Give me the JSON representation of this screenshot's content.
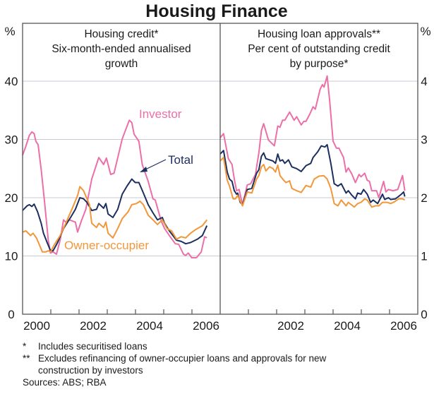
{
  "chart_data": {
    "title": "Housing Finance",
    "type": "line",
    "colors": {
      "investor": "#ec6fa8",
      "total": "#1c2f5e",
      "owner_occupier": "#f2973a",
      "grid": "#c9cad6",
      "axis": "#555555"
    },
    "grid": true,
    "panels": [
      {
        "heading": [
          "Housing credit*",
          "Six-month-ended annualised",
          "growth"
        ],
        "unit": "%",
        "ylim": [
          0,
          40
        ],
        "yticks": [
          "0",
          "10",
          "20",
          "30",
          "40"
        ],
        "xlim": [
          2000,
          2007
        ],
        "xtick_labels": [
          "2000",
          "2002",
          "2004",
          "2006"
        ],
        "annotations": {
          "investor": "Investor",
          "total": "Total",
          "owner_occupier": "Owner-occupier"
        },
        "series": [
          {
            "name": "Investor",
            "key": "investor",
            "x": [
              2000.0,
              2000.12,
              2000.24,
              2000.33,
              2000.41,
              2000.47,
              2000.55,
              2000.66,
              2000.78,
              2000.91,
              2000.99,
              2001.08,
              2001.2,
              2001.33,
              2001.45,
              2001.53,
              2001.66,
              2001.87,
              2001.95,
              2002.08,
              2002.24,
              2002.45,
              2002.7,
              2002.87,
              2002.97,
              2003.12,
              2003.24,
              2003.53,
              2003.78,
              2003.87,
              2003.95,
              2004.12,
              2004.24,
              2004.45,
              2004.62,
              2004.7,
              2004.91,
              2005.03,
              2005.2,
              2005.41,
              2005.53,
              2005.7,
              2005.78,
              2005.87,
              2005.99,
              2006.16,
              2006.33,
              2006.45,
              2006.53
            ],
            "y": [
              27.3,
              28.9,
              30.7,
              31.3,
              31.0,
              29.7,
              29.1,
              24.8,
              19.2,
              12.7,
              10.5,
              10.7,
              10.3,
              12.7,
              16.2,
              15.8,
              16.2,
              15.8,
              14.1,
              16.0,
              18.0,
              23.2,
              26.9,
              25.7,
              26.8,
              24.0,
              24.2,
              30.1,
              33.3,
              32.9,
              30.9,
              29.7,
              25.7,
              22.8,
              19.8,
              19.6,
              16.0,
              14.7,
              13.5,
              12.1,
              12.0,
              10.3,
              10.1,
              10.5,
              9.7,
              9.7,
              10.7,
              13.3,
              13.1
            ]
          },
          {
            "name": "Total",
            "key": "total",
            "x": [
              2000.0,
              2000.16,
              2000.24,
              2000.33,
              2000.41,
              2000.53,
              2000.66,
              2000.74,
              2000.87,
              2000.99,
              2001.08,
              2001.24,
              2001.45,
              2001.7,
              2001.87,
              2002.03,
              2002.16,
              2002.28,
              2002.45,
              2002.62,
              2002.7,
              2002.87,
              2002.95,
              2003.03,
              2003.2,
              2003.37,
              2003.53,
              2003.7,
              2003.87,
              2003.99,
              2004.12,
              2004.28,
              2004.45,
              2004.62,
              2004.78,
              2004.95,
              2005.03,
              2005.2,
              2005.45,
              2005.62,
              2005.78,
              2005.95,
              2006.2,
              2006.37,
              2006.53
            ],
            "y": [
              17.8,
              18.6,
              18.8,
              18.5,
              18.9,
              17.6,
              15.6,
              13.9,
              12.3,
              10.9,
              10.9,
              12.3,
              14.7,
              16.6,
              18.0,
              20.0,
              19.8,
              19.2,
              17.8,
              18.0,
              19.0,
              18.2,
              19.0,
              17.2,
              16.6,
              18.0,
              20.6,
              22.0,
              23.2,
              22.6,
              22.6,
              20.8,
              18.8,
              17.4,
              16.2,
              16.6,
              15.6,
              14.3,
              12.7,
              12.5,
              12.1,
              12.3,
              12.9,
              13.5,
              15.2
            ]
          },
          {
            "name": "Owner-occupier",
            "key": "owner_occupier",
            "x": [
              2000.0,
              2000.12,
              2000.28,
              2000.37,
              2000.49,
              2000.58,
              2000.7,
              2000.83,
              2000.91,
              2000.99,
              2001.12,
              2001.33,
              2001.53,
              2001.78,
              2001.95,
              2002.03,
              2002.16,
              2002.37,
              2002.45,
              2002.62,
              2002.7,
              2002.87,
              2002.95,
              2003.03,
              2003.2,
              2003.37,
              2003.53,
              2003.74,
              2003.87,
              2004.03,
              2004.16,
              2004.28,
              2004.45,
              2004.62,
              2004.78,
              2004.95,
              2005.12,
              2005.28,
              2005.45,
              2005.62,
              2005.78,
              2005.95,
              2006.12,
              2006.37,
              2006.53
            ],
            "y": [
              14.1,
              14.3,
              13.5,
              13.9,
              13.1,
              12.1,
              10.7,
              10.7,
              10.9,
              10.7,
              11.9,
              13.5,
              15.6,
              18.4,
              20.4,
              21.9,
              21.2,
              18.8,
              15.6,
              14.9,
              15.6,
              14.9,
              15.8,
              13.9,
              13.1,
              14.7,
              16.4,
              17.6,
              18.8,
              19.0,
              19.4,
              18.8,
              17.0,
              16.2,
              15.4,
              16.2,
              14.7,
              14.3,
              12.9,
              13.3,
              13.1,
              13.9,
              14.5,
              15.2,
              16.2
            ]
          }
        ]
      },
      {
        "heading": [
          "Housing loan approvals**",
          "Per cent of outstanding credit",
          "by purpose*"
        ],
        "unit": "%",
        "ylim": [
          0,
          5
        ],
        "yticks": [
          "0",
          "1",
          "2",
          "3",
          "4"
        ],
        "xlim": [
          2000,
          2007
        ],
        "xtick_labels": [
          "2002",
          "2004",
          "2006"
        ],
        "series": [
          {
            "name": "Investor",
            "key": "investor",
            "x": [
              2000.0,
              2000.12,
              2000.29,
              2000.42,
              2000.5,
              2000.58,
              2000.67,
              2000.79,
              2000.96,
              2001.08,
              2001.25,
              2001.37,
              2001.46,
              2001.54,
              2001.71,
              2001.92,
              2002.04,
              2002.12,
              2002.21,
              2002.29,
              2002.46,
              2002.62,
              2002.71,
              2002.87,
              2002.96,
              2003.04,
              2003.17,
              2003.29,
              2003.37,
              2003.54,
              2003.62,
              2003.68,
              2003.79,
              2003.88,
              2004.0,
              2004.12,
              2004.21,
              2004.37,
              2004.46,
              2004.54,
              2004.67,
              2004.79,
              2004.92,
              2004.99,
              2005.12,
              2005.21,
              2005.29,
              2005.37,
              2005.54,
              2005.62,
              2005.79,
              2005.87,
              2005.96,
              2006.12,
              2006.29,
              2006.46,
              2006.54
            ],
            "y": [
              3.03,
              3.1,
              2.67,
              2.57,
              2.32,
              2.12,
              2.14,
              1.88,
              2.22,
              2.24,
              2.4,
              2.77,
              3.15,
              3.27,
              2.99,
              2.89,
              3.23,
              3.21,
              3.33,
              3.33,
              3.47,
              3.33,
              3.39,
              3.25,
              3.31,
              3.31,
              3.43,
              3.56,
              3.52,
              3.86,
              3.94,
              3.9,
              4.09,
              3.66,
              2.97,
              2.85,
              2.85,
              2.69,
              2.44,
              2.51,
              2.4,
              2.26,
              2.4,
              2.36,
              2.42,
              2.3,
              2.28,
              2.12,
              2.12,
              2.0,
              2.28,
              2.1,
              2.14,
              2.12,
              2.14,
              2.38,
              2.12
            ]
          },
          {
            "name": "Total",
            "key": "total",
            "x": [
              2000.0,
              2000.12,
              2000.25,
              2000.33,
              2000.42,
              2000.5,
              2000.58,
              2000.62,
              2000.71,
              2000.79,
              2000.96,
              2001.12,
              2001.29,
              2001.37,
              2001.46,
              2001.54,
              2001.62,
              2001.87,
              2001.96,
              2002.04,
              2002.12,
              2002.21,
              2002.29,
              2002.42,
              2002.54,
              2002.71,
              2002.87,
              2003.04,
              2003.21,
              2003.29,
              2003.46,
              2003.58,
              2003.71,
              2003.79,
              2003.92,
              2004.04,
              2004.17,
              2004.29,
              2004.46,
              2004.54,
              2004.67,
              2004.79,
              2004.87,
              2004.99,
              2005.08,
              2005.21,
              2005.33,
              2005.42,
              2005.58,
              2005.75,
              2005.83,
              2005.96,
              2006.04,
              2006.21,
              2006.42,
              2006.5,
              2006.54
            ],
            "y": [
              2.75,
              2.81,
              2.44,
              2.32,
              2.28,
              2.12,
              2.06,
              2.08,
              1.92,
              1.88,
              2.14,
              2.16,
              2.42,
              2.48,
              2.71,
              2.77,
              2.67,
              2.63,
              2.59,
              2.75,
              2.63,
              2.65,
              2.59,
              2.65,
              2.53,
              2.5,
              2.45,
              2.55,
              2.59,
              2.69,
              2.79,
              2.89,
              2.87,
              2.91,
              2.59,
              2.24,
              2.2,
              2.24,
              2.08,
              2.12,
              2.04,
              1.98,
              2.08,
              2.06,
              2.14,
              2.06,
              1.92,
              1.96,
              1.9,
              2.06,
              1.97,
              2.0,
              1.97,
              1.98,
              2.06,
              2.1,
              2.02
            ]
          },
          {
            "name": "Owner-occupier",
            "key": "owner_occupier",
            "x": [
              2000.0,
              2000.12,
              2000.25,
              2000.33,
              2000.46,
              2000.54,
              2000.62,
              2000.79,
              2000.96,
              2001.12,
              2001.29,
              2001.37,
              2001.46,
              2001.54,
              2001.62,
              2001.75,
              2001.87,
              2001.96,
              2002.04,
              2002.12,
              2002.25,
              2002.33,
              2002.46,
              2002.54,
              2002.71,
              2002.87,
              2003.04,
              2003.21,
              2003.33,
              2003.5,
              2003.67,
              2003.79,
              2003.92,
              2004.04,
              2004.17,
              2004.29,
              2004.46,
              2004.54,
              2004.75,
              2004.87,
              2004.99,
              2005.12,
              2005.21,
              2005.37,
              2005.5,
              2005.62,
              2005.75,
              2005.92,
              2006.04,
              2006.17,
              2006.33,
              2006.46,
              2006.54
            ],
            "y": [
              2.63,
              2.69,
              2.3,
              2.2,
              1.98,
              1.98,
              2.04,
              1.86,
              2.1,
              2.08,
              2.32,
              2.38,
              2.53,
              2.57,
              2.46,
              2.53,
              2.5,
              2.44,
              2.56,
              2.38,
              2.3,
              2.26,
              2.29,
              2.16,
              2.12,
              2.09,
              2.21,
              2.18,
              2.32,
              2.37,
              2.38,
              2.32,
              2.16,
              1.9,
              1.86,
              1.96,
              1.86,
              1.92,
              1.84,
              1.9,
              1.92,
              1.98,
              1.96,
              1.84,
              1.86,
              1.86,
              1.92,
              1.92,
              1.9,
              1.93,
              1.98,
              1.98,
              1.96
            ]
          }
        ]
      }
    ],
    "footnotes": [
      "*",
      "Includes securitised loans",
      "**",
      "Excludes refinancing of owner-occupier loans and approvals for new",
      "construction by investors",
      "Sources: ABS; RBA"
    ]
  }
}
